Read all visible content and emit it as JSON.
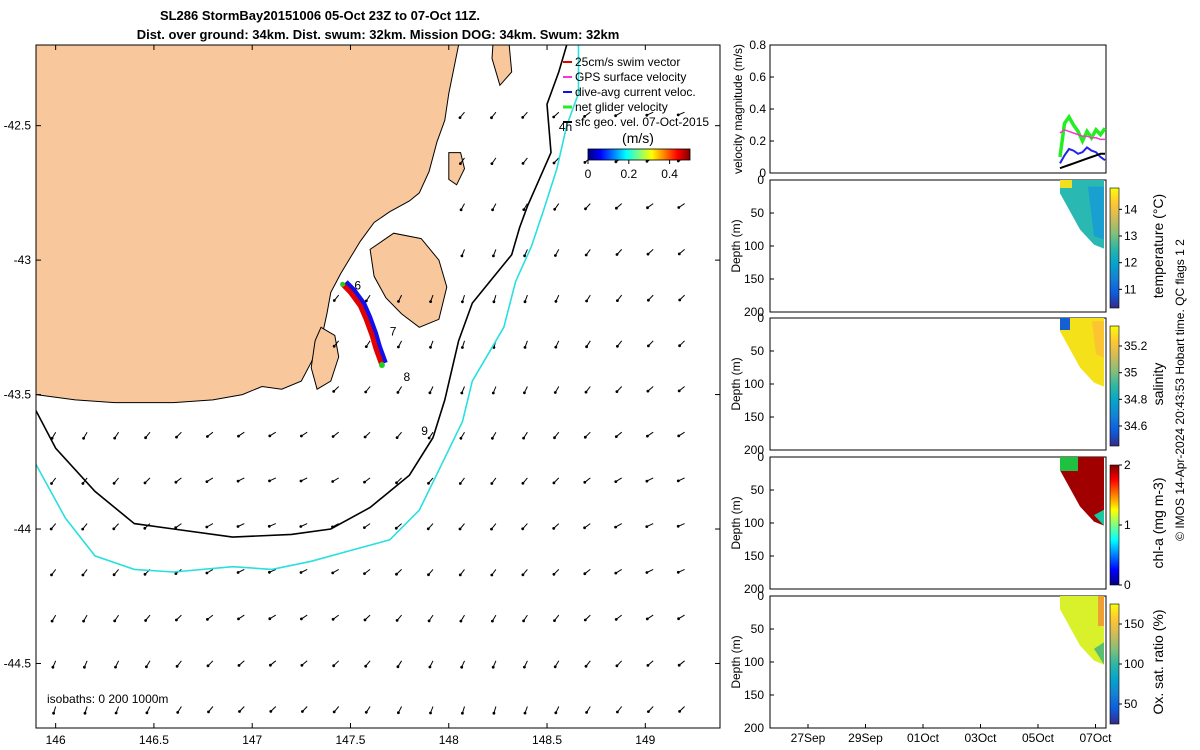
{
  "title": {
    "line1": "SL286 StormBay20151006 05-Oct 23Z to 07-Oct 11Z.",
    "line2": "Dist. over ground: 34km. Dist. swum: 32km. Mission DOG: 34km. Swum: 32km"
  },
  "colors": {
    "land": "#f8c89c",
    "iso200": "#000000",
    "iso1000": "#2adfdf",
    "track_red": "#e00000",
    "track_blue": "#1010ee",
    "track_green": "#22cc22",
    "gps": "#ff33cc",
    "vel_net": "#22ee22",
    "vel_dive": "#2222ee",
    "vel_sfc": "#000000"
  },
  "colormaps": {
    "velocity": [
      "#00007f",
      "#0000ff",
      "#007fff",
      "#00ffff",
      "#7fff7f",
      "#ffff00",
      "#ff7f00",
      "#ff0000",
      "#7f0000"
    ],
    "parula": [
      "#352a87",
      "#0f5cdd",
      "#1481d6",
      "#06a4ca",
      "#2eb7a4",
      "#87bf77",
      "#d1bb59",
      "#fec832",
      "#f9fb0e"
    ],
    "jet": [
      "#00007f",
      "#0000ff",
      "#007fff",
      "#00ffff",
      "#7fff7f",
      "#ffff00",
      "#ff7f00",
      "#ff0000",
      "#7f0000"
    ]
  },
  "chart_data": [
    {
      "type": "map",
      "title": "SL286 StormBay20151006 05-Oct 23Z to 07-Oct 11Z.",
      "xlim": [
        145.9,
        149.38
      ],
      "ylim": [
        -44.74,
        -42.2
      ],
      "x_ticks": [
        146,
        146.5,
        147,
        147.5,
        148,
        148.5,
        149
      ],
      "x_tick_labels": [
        "146",
        "146.5",
        "147",
        "147.5",
        "148",
        "148.5",
        "149"
      ],
      "y_ticks": [
        -42.5,
        -43,
        -43.5,
        -44,
        -44.5
      ],
      "y_tick_labels": [
        "-42.5",
        "-43",
        "-43.5",
        "-44",
        "-44.5"
      ],
      "legend": [
        "25cm/s swim vector",
        "GPS surface velocity",
        "dive-avg current veloc.",
        "net glider velocity",
        "sfc geo. vel. 07-Oct-2015"
      ],
      "colorbar": {
        "label": "(m/s)",
        "ticks": [
          0,
          0.2,
          0.4
        ],
        "tick_labels": [
          "0",
          "0.2",
          "0.4"
        ],
        "range": [
          0,
          0.5
        ]
      },
      "isobaths_text": "isobaths: 0   200  1000m",
      "track_labels": [
        {
          "text": "4h",
          "lon": 148.56,
          "lat": -42.52
        },
        {
          "text": "6",
          "lon": 147.52,
          "lat": -43.11
        },
        {
          "text": "7",
          "lon": 147.7,
          "lat": -43.28
        },
        {
          "text": "8",
          "lon": 147.77,
          "lat": -43.45
        },
        {
          "text": "9",
          "lon": 147.86,
          "lat": -43.65
        }
      ],
      "isobath_200": [
        [
          145.9,
          -43.56
        ],
        [
          146.0,
          -43.7
        ],
        [
          146.2,
          -43.86
        ],
        [
          146.4,
          -43.98
        ],
        [
          146.6,
          -44.0
        ],
        [
          146.9,
          -44.03
        ],
        [
          147.2,
          -44.02
        ],
        [
          147.4,
          -44.0
        ],
        [
          147.6,
          -43.92
        ],
        [
          147.8,
          -43.8
        ],
        [
          147.92,
          -43.66
        ],
        [
          147.98,
          -43.52
        ],
        [
          148.05,
          -43.3
        ],
        [
          148.12,
          -43.16
        ],
        [
          148.22,
          -43.07
        ],
        [
          148.32,
          -42.98
        ],
        [
          148.36,
          -42.88
        ],
        [
          148.4,
          -42.8
        ],
        [
          148.46,
          -42.7
        ],
        [
          148.52,
          -42.6
        ],
        [
          148.5,
          -42.42
        ],
        [
          148.56,
          -42.3
        ],
        [
          148.6,
          -42.2
        ]
      ],
      "isobath_1000": [
        [
          145.9,
          -43.76
        ],
        [
          146.05,
          -43.96
        ],
        [
          146.2,
          -44.1
        ],
        [
          146.4,
          -44.15
        ],
        [
          146.6,
          -44.16
        ],
        [
          146.9,
          -44.14
        ],
        [
          147.1,
          -44.15
        ],
        [
          147.3,
          -44.12
        ],
        [
          147.5,
          -44.08
        ],
        [
          147.7,
          -44.04
        ],
        [
          147.85,
          -43.93
        ],
        [
          147.97,
          -43.75
        ],
        [
          148.07,
          -43.6
        ],
        [
          148.12,
          -43.45
        ],
        [
          148.2,
          -43.35
        ],
        [
          148.28,
          -43.25
        ],
        [
          148.34,
          -43.08
        ],
        [
          148.42,
          -42.95
        ],
        [
          148.48,
          -42.82
        ],
        [
          148.55,
          -42.66
        ],
        [
          148.6,
          -42.5
        ],
        [
          148.66,
          -42.38
        ],
        [
          148.66,
          -42.2
        ]
      ],
      "track": [
        [
          147.46,
          -43.09
        ],
        [
          147.5,
          -43.12
        ],
        [
          147.55,
          -43.17
        ],
        [
          147.58,
          -43.22
        ],
        [
          147.61,
          -43.28
        ],
        [
          147.63,
          -43.33
        ],
        [
          147.66,
          -43.39
        ]
      ],
      "land": [
        [
          [
            145.9,
            -42.2
          ],
          [
            148.05,
            -42.2
          ],
          [
            148.0,
            -42.38
          ],
          [
            147.98,
            -42.48
          ],
          [
            147.94,
            -42.56
          ],
          [
            147.9,
            -42.67
          ],
          [
            147.85,
            -42.75
          ],
          [
            147.8,
            -42.78
          ],
          [
            147.7,
            -42.82
          ],
          [
            147.62,
            -42.86
          ],
          [
            147.55,
            -42.93
          ],
          [
            147.5,
            -42.99
          ],
          [
            147.45,
            -43.05
          ],
          [
            147.4,
            -43.12
          ],
          [
            147.38,
            -43.2
          ],
          [
            147.35,
            -43.3
          ],
          [
            147.3,
            -43.38
          ],
          [
            147.25,
            -43.45
          ],
          [
            147.15,
            -43.48
          ],
          [
            147.05,
            -43.47
          ],
          [
            146.95,
            -43.5
          ],
          [
            146.8,
            -43.52
          ],
          [
            146.6,
            -43.53
          ],
          [
            146.3,
            -43.53
          ],
          [
            146.1,
            -43.52
          ],
          [
            145.9,
            -43.5
          ]
        ],
        [
          [
            147.6,
            -42.96
          ],
          [
            147.72,
            -42.9
          ],
          [
            147.86,
            -42.92
          ],
          [
            147.95,
            -43.0
          ],
          [
            147.99,
            -43.1
          ],
          [
            147.95,
            -43.22
          ],
          [
            147.85,
            -43.25
          ],
          [
            147.76,
            -43.2
          ],
          [
            147.68,
            -43.14
          ],
          [
            147.62,
            -43.06
          ]
        ],
        [
          [
            147.35,
            -43.25
          ],
          [
            147.42,
            -43.28
          ],
          [
            147.44,
            -43.36
          ],
          [
            147.4,
            -43.45
          ],
          [
            147.33,
            -43.48
          ],
          [
            147.3,
            -43.4
          ],
          [
            147.32,
            -43.3
          ]
        ],
        [
          [
            148.0,
            -42.6
          ],
          [
            148.06,
            -42.6
          ],
          [
            148.08,
            -42.66
          ],
          [
            148.04,
            -42.72
          ],
          [
            148.0,
            -42.7
          ]
        ],
        [
          [
            148.23,
            -42.14
          ],
          [
            148.3,
            -42.14
          ],
          [
            148.32,
            -42.3
          ],
          [
            148.26,
            -42.35
          ],
          [
            148.22,
            -42.25
          ]
        ]
      ]
    },
    {
      "type": "line",
      "ylabel": "velocity magnitude (m/s)",
      "ylim": [
        0,
        0.8
      ],
      "y_ticks": [
        0,
        0.2,
        0.4,
        0.6,
        0.8
      ],
      "y_tick_labels": [
        "0",
        "0.2",
        "0.4",
        "0.6",
        "0.8"
      ],
      "x": [
        0,
        0.1,
        0.2,
        0.3,
        0.4,
        0.5,
        0.6,
        0.7,
        0.8,
        0.9,
        1.0
      ],
      "series": [
        {
          "name": "net glider velocity",
          "values": [
            0.1,
            0.31,
            0.35,
            0.3,
            0.26,
            0.2,
            0.26,
            0.22,
            0.27,
            0.24,
            0.28
          ]
        },
        {
          "name": "GPS surface velocity",
          "values": [
            0.25,
            0.27,
            0.26,
            0.25,
            0.24,
            0.23,
            0.23,
            0.22,
            0.22,
            0.21,
            0.21
          ]
        },
        {
          "name": "dive-avg current veloc.",
          "values": [
            0.06,
            0.11,
            0.15,
            0.14,
            0.12,
            0.13,
            0.16,
            0.14,
            0.13,
            0.1,
            0.08
          ]
        },
        {
          "name": "sfc geo. vel.",
          "values": [
            0.03,
            0.04,
            0.05,
            0.06,
            0.07,
            0.08,
            0.09,
            0.1,
            0.11,
            0.12,
            0.12
          ]
        }
      ]
    },
    {
      "type": "heatmap",
      "ylabel": "Depth (m)",
      "variable": "temperature",
      "colorbar_label": "temperature (°C)",
      "clim": [
        10.3,
        14.8
      ],
      "colorbar_ticks": [
        11,
        12,
        13,
        14
      ],
      "colorbar_tick_labels": [
        "11",
        "12",
        "13",
        "14"
      ],
      "ylim": [
        200,
        0
      ],
      "y_ticks": [
        0,
        50,
        100,
        150,
        200
      ],
      "y_tick_labels": [
        "0",
        "50",
        "100",
        "150",
        "200"
      ]
    },
    {
      "type": "heatmap",
      "ylabel": "Depth (m)",
      "variable": "salinity",
      "colorbar_label": "salinity",
      "clim": [
        34.45,
        35.35
      ],
      "colorbar_ticks": [
        34.6,
        34.8,
        35,
        35.2
      ],
      "colorbar_tick_labels": [
        "34.6",
        "34.8",
        "35",
        "35.2"
      ],
      "ylim": [
        200,
        0
      ],
      "y_ticks": [
        0,
        50,
        100,
        150,
        200
      ],
      "y_tick_labels": [
        "0",
        "50",
        "100",
        "150",
        "200"
      ]
    },
    {
      "type": "heatmap",
      "ylabel": "Depth (m)",
      "variable": "chl-a",
      "colorbar_label": "chl-a (mg m-3)",
      "clim": [
        0,
        2
      ],
      "colorbar_ticks": [
        0,
        1,
        2
      ],
      "colorbar_tick_labels": [
        "0",
        "1",
        "2"
      ],
      "ylim": [
        200,
        0
      ],
      "y_ticks": [
        0,
        50,
        100,
        150,
        200
      ],
      "y_tick_labels": [
        "0",
        "50",
        "100",
        "150",
        "200"
      ]
    },
    {
      "type": "heatmap",
      "ylabel": "Depth (m)",
      "variable": "oxygen saturation",
      "colorbar_label": "Ox. sat. ratio (%)",
      "clim": [
        25,
        175
      ],
      "colorbar_ticks": [
        50,
        100,
        150
      ],
      "colorbar_tick_labels": [
        "50",
        "100",
        "150"
      ],
      "ylim": [
        200,
        0
      ],
      "y_ticks": [
        0,
        50,
        100,
        150,
        200
      ],
      "y_tick_labels": [
        "0",
        "50",
        "100",
        "150",
        "200"
      ],
      "x_tick_labels": [
        "27Sep",
        "29Sep",
        "01Oct",
        "03Oct",
        "05Oct",
        "07Oct"
      ]
    }
  ],
  "footer": {
    "side_note": "© IMOS 14-Apr-2024 20:43:53 Hobart time. QC flags 1  2"
  }
}
